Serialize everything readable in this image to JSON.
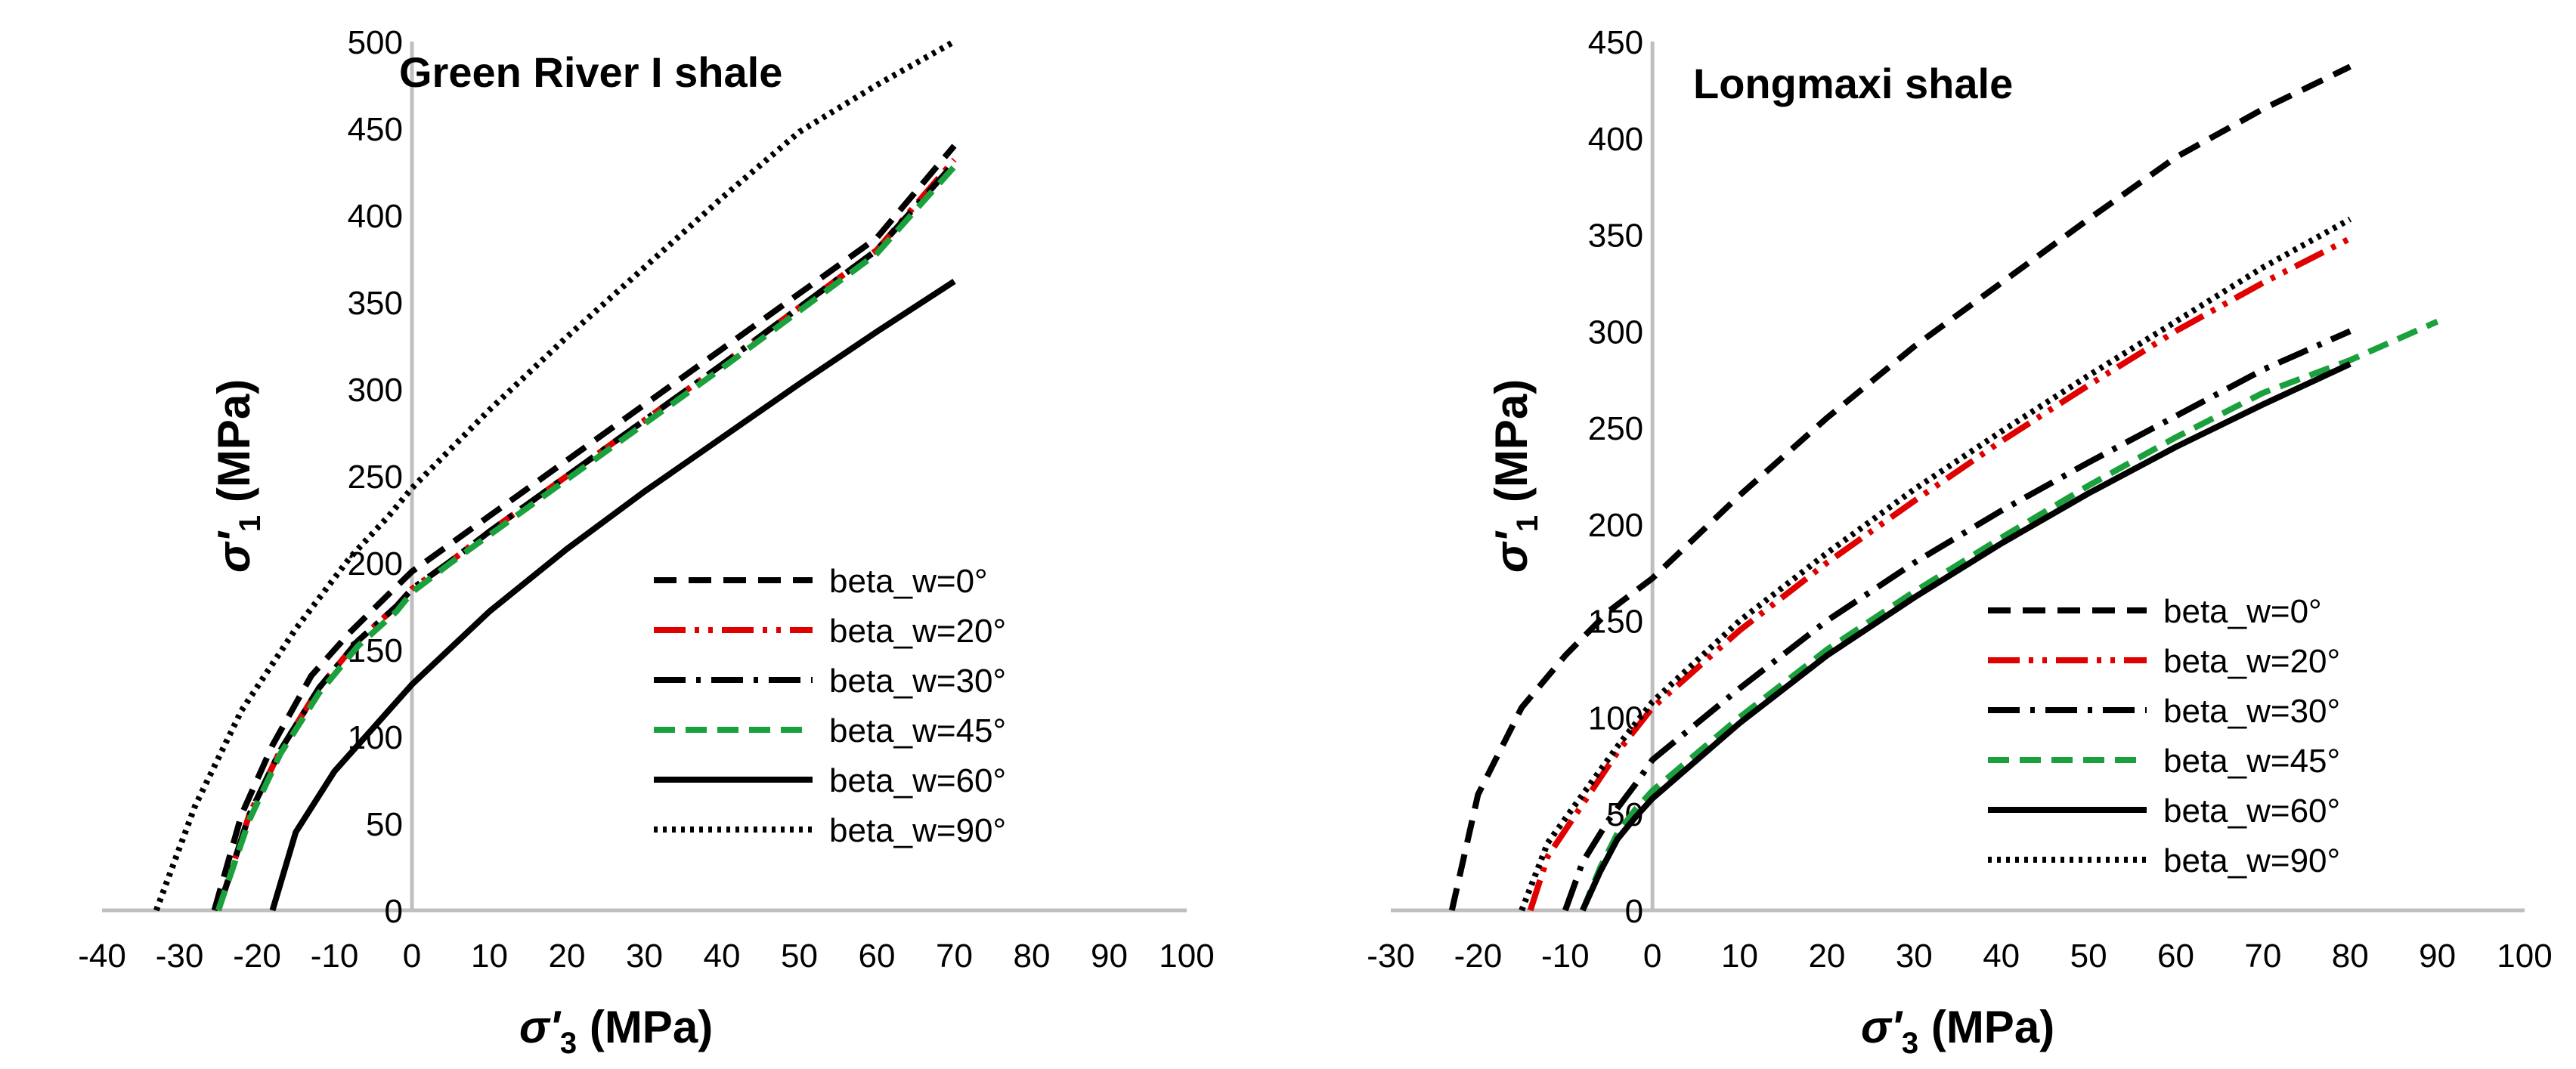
{
  "chart_data": [
    {
      "type": "line",
      "title": "Green River I shale",
      "xlabel": {
        "sym": "σ'",
        "sub": "3",
        "unit": " (MPa)"
      },
      "ylabel": {
        "sym": "σ'",
        "sub": "1",
        "unit": " (MPa)"
      },
      "xlim": [
        -40,
        100
      ],
      "ylim": [
        0,
        500
      ],
      "xticks": [
        "-40",
        "-30",
        "-20",
        "-10",
        "0",
        "10",
        "20",
        "30",
        "40",
        "50",
        "60",
        "70",
        "80",
        "90",
        "100"
      ],
      "yticks": [
        "0",
        "50",
        "100",
        "150",
        "200",
        "250",
        "300",
        "350",
        "400",
        "450",
        "500"
      ],
      "grid": false,
      "legend_position": "center-right",
      "series": [
        {
          "name": "beta_w=0°",
          "color": "#000000",
          "dash": "long-dash",
          "x": [
            -25.5,
            -22,
            -18,
            -13,
            -8,
            -3,
            0,
            5,
            10,
            20,
            30,
            40,
            50,
            60,
            70
          ],
          "y": [
            0,
            55,
            95,
            135,
            160,
            182,
            195,
            211,
            227,
            259,
            291,
            323,
            355,
            387,
            440
          ]
        },
        {
          "name": "beta_w=20°",
          "color": "#e00000",
          "dash": "dash-dot-dot",
          "x": [
            -25,
            -21,
            -17,
            -12,
            -7,
            -2,
            0,
            5,
            10,
            20,
            30,
            40,
            50,
            60,
            70
          ],
          "y": [
            0,
            55,
            92,
            128,
            155,
            175,
            185,
            201,
            218,
            250,
            282,
            314,
            347,
            380,
            432
          ]
        },
        {
          "name": "beta_w=30°",
          "color": "#000000",
          "dash": "dash-dot",
          "x": [
            -25,
            -21,
            -17,
            -12,
            -7,
            -2,
            0,
            5,
            10,
            20,
            30,
            40,
            50,
            60,
            70
          ],
          "y": [
            0,
            55,
            92,
            128,
            155,
            175,
            185,
            201,
            218,
            250,
            282,
            314,
            347,
            380,
            430
          ]
        },
        {
          "name": "beta_w=45°",
          "color": "#1aa03c",
          "dash": "dash",
          "x": [
            -25,
            -21,
            -17,
            -12,
            -7,
            -2,
            0,
            5,
            10,
            20,
            30,
            40,
            50,
            60,
            70
          ],
          "y": [
            0,
            52,
            90,
            125,
            152,
            172,
            183,
            200,
            216,
            248,
            280,
            312,
            345,
            378,
            428
          ]
        },
        {
          "name": "beta_w=60°",
          "color": "#000000",
          "dash": "solid",
          "x": [
            -18,
            -15,
            -10,
            -5,
            0,
            10,
            20,
            30,
            40,
            50,
            60,
            70
          ],
          "y": [
            0,
            45,
            80,
            105,
            130,
            172,
            208,
            241,
            272,
            303,
            333,
            362
          ]
        },
        {
          "name": "beta_w=90°",
          "color": "#000000",
          "dash": "dotted",
          "x": [
            -33,
            -28,
            -22,
            -15,
            -8,
            -3,
            0,
            10,
            20,
            30,
            40,
            50,
            60,
            70
          ],
          "y": [
            0,
            60,
            115,
            162,
            203,
            227,
            243,
            288,
            330,
            370,
            410,
            448,
            475,
            500
          ]
        }
      ]
    },
    {
      "type": "line",
      "title": "Longmaxi shale",
      "xlabel": {
        "sym": "σ'",
        "sub": "3",
        "unit": " (MPa)"
      },
      "ylabel": {
        "sym": "σ'",
        "sub": "1",
        "unit": " (MPa)"
      },
      "xlim": [
        -30,
        100
      ],
      "ylim": [
        0,
        450
      ],
      "xticks": [
        "-30",
        "-20",
        "-10",
        "0",
        "10",
        "20",
        "30",
        "40",
        "50",
        "60",
        "70",
        "80",
        "90",
        "100"
      ],
      "yticks": [
        "0",
        "50",
        "100",
        "150",
        "200",
        "250",
        "300",
        "350",
        "400",
        "450"
      ],
      "grid": false,
      "legend_position": "bottom-right",
      "series": [
        {
          "name": "beta_w=0°",
          "color": "#000000",
          "dash": "long-dash",
          "x": [
            -23,
            -20,
            -15,
            -10,
            -5,
            0,
            10,
            20,
            30,
            40,
            50,
            60,
            70,
            80
          ],
          "y": [
            0,
            60,
            105,
            132,
            155,
            172,
            215,
            255,
            292,
            325,
            358,
            390,
            415,
            437
          ]
        },
        {
          "name": "beta_w=20°",
          "color": "#e00000",
          "dash": "dash-dot-dot",
          "x": [
            -14,
            -12,
            -8,
            -4,
            0,
            10,
            20,
            30,
            40,
            50,
            60,
            70,
            80
          ],
          "y": [
            0,
            28,
            55,
            82,
            105,
            145,
            180,
            212,
            243,
            272,
            300,
            325,
            348
          ]
        },
        {
          "name": "beta_w=30°",
          "color": "#000000",
          "dash": "dash-dot",
          "x": [
            -10,
            -8,
            -5,
            -2,
            0,
            10,
            20,
            30,
            40,
            50,
            60,
            70,
            80
          ],
          "y": [
            0,
            25,
            47,
            65,
            78,
            115,
            150,
            180,
            207,
            232,
            256,
            280,
            300
          ]
        },
        {
          "name": "beta_w=45°",
          "color": "#1aa03c",
          "dash": "dash",
          "x": [
            -8,
            -6,
            -4,
            -2,
            0,
            10,
            20,
            30,
            40,
            50,
            60,
            70,
            80,
            90
          ],
          "y": [
            0,
            22,
            40,
            52,
            62,
            100,
            135,
            165,
            193,
            220,
            245,
            268,
            285,
            305
          ]
        },
        {
          "name": "beta_w=60°",
          "color": "#000000",
          "dash": "solid",
          "x": [
            -8,
            -6,
            -4,
            -2,
            0,
            10,
            20,
            30,
            40,
            50,
            60,
            70,
            80
          ],
          "y": [
            0,
            20,
            37,
            48,
            58,
            97,
            132,
            162,
            190,
            216,
            240,
            262,
            283
          ]
        },
        {
          "name": "beta_w=90°",
          "color": "#000000",
          "dash": "dotted",
          "x": [
            -15,
            -12,
            -8,
            -4,
            0,
            10,
            20,
            30,
            40,
            50,
            60,
            70,
            80
          ],
          "y": [
            0,
            35,
            60,
            85,
            108,
            150,
            185,
            218,
            248,
            277,
            305,
            333,
            358
          ]
        }
      ]
    }
  ]
}
